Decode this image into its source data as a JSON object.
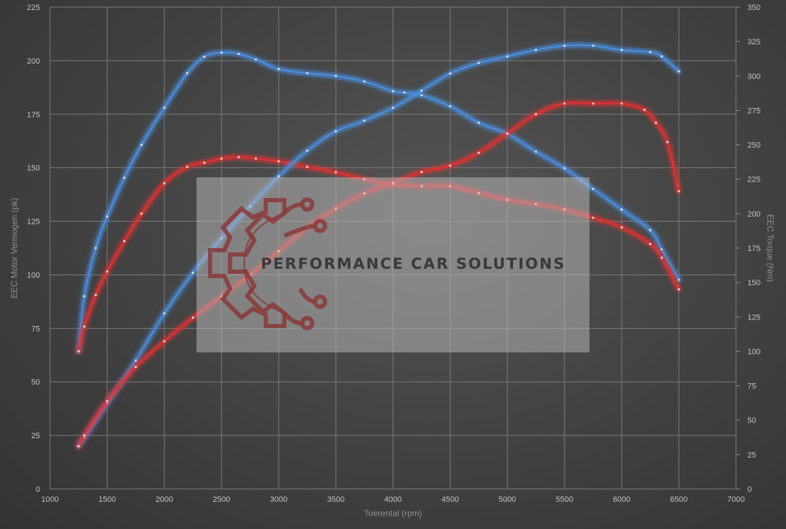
{
  "chart_data": {
    "type": "line",
    "xlabel": "Toerental (rpm)",
    "ylabel_left": "EEC Motor Vermogen (pk)",
    "ylabel_right": "EEC Torque (Nm)",
    "xlim": [
      1000,
      7000
    ],
    "ylim_left": [
      0,
      225
    ],
    "ylim_right": [
      0,
      350
    ],
    "x_ticks": [
      1000,
      1500,
      2000,
      2500,
      3000,
      3500,
      4000,
      4500,
      5000,
      5500,
      6000,
      6500,
      7000
    ],
    "y_left_ticks": [
      0,
      25,
      50,
      75,
      100,
      125,
      150,
      175,
      200,
      225
    ],
    "y_right_ticks": [
      0,
      25,
      50,
      75,
      100,
      125,
      150,
      175,
      200,
      225,
      250,
      275,
      300,
      325,
      350
    ],
    "grid": true,
    "colors": {
      "tuned": "#4a8fe0",
      "stock": "#e53030"
    },
    "series": [
      {
        "color_key": "tuned",
        "axis": "right",
        "x": [
          1250,
          1300,
          1400,
          1500,
          1650,
          1800,
          2000,
          2200,
          2350,
          2500,
          2650,
          2800,
          3000,
          3250,
          3500,
          3750,
          4000,
          4100,
          4250,
          4500,
          4750,
          5000,
          5250,
          5500,
          5750,
          6000,
          6250,
          6350,
          6500
        ],
        "values": [
          100,
          140,
          175,
          198,
          226,
          250,
          277,
          302,
          314,
          317,
          316,
          312,
          305,
          302,
          300,
          296,
          289,
          288,
          286,
          278,
          266,
          258,
          245,
          233,
          218,
          203,
          188,
          174,
          152
        ]
      },
      {
        "color_key": "stock",
        "axis": "right",
        "x": [
          1250,
          1300,
          1400,
          1500,
          1650,
          1800,
          2000,
          2200,
          2350,
          2500,
          2650,
          2800,
          3000,
          3250,
          3500,
          3750,
          4000,
          4250,
          4500,
          4750,
          5000,
          5250,
          5500,
          5750,
          6000,
          6250,
          6350,
          6500
        ],
        "values": [
          100,
          118,
          141,
          158,
          180,
          200,
          222,
          234,
          237,
          240,
          241,
          240,
          238,
          234,
          230,
          225,
          221,
          220,
          220,
          215,
          210,
          207,
          203,
          197,
          190,
          178,
          168,
          145
        ]
      },
      {
        "color_key": "tuned",
        "axis": "left",
        "x": [
          1250,
          1300,
          1500,
          1750,
          2000,
          2250,
          2500,
          2750,
          3000,
          3250,
          3500,
          3750,
          4000,
          4250,
          4500,
          4750,
          5000,
          5250,
          5500,
          5750,
          6000,
          6250,
          6350,
          6500
        ],
        "values": [
          20,
          24,
          40,
          60,
          82,
          101,
          117,
          132,
          146,
          158,
          167,
          172,
          178,
          186,
          194,
          199,
          202,
          205,
          207,
          207,
          205,
          204,
          202,
          195
        ]
      },
      {
        "color_key": "stock",
        "axis": "left",
        "x": [
          1250,
          1300,
          1500,
          1750,
          2000,
          2250,
          2500,
          2750,
          3000,
          3250,
          3500,
          3750,
          4000,
          4250,
          4500,
          4750,
          5000,
          5250,
          5500,
          5750,
          6000,
          6200,
          6300,
          6400,
          6500
        ],
        "values": [
          20,
          25,
          41,
          57,
          69,
          80,
          90,
          100,
          111,
          122,
          131,
          138,
          143,
          148,
          151,
          157,
          166,
          175,
          180,
          180,
          180,
          177,
          171,
          162,
          139
        ]
      }
    ]
  },
  "watermark": {
    "text": "PERFORMANCE CAR SOLUTIONS",
    "icon": "gear-circuit-logo-icon"
  }
}
